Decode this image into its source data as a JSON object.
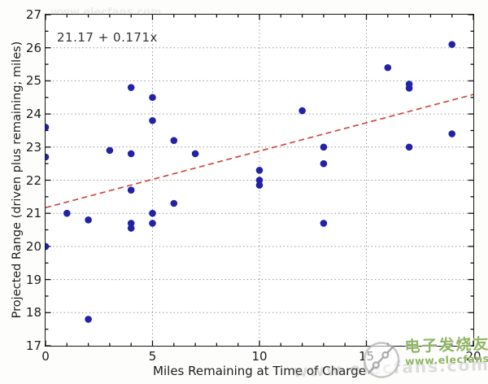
{
  "chart_data": {
    "type": "scatter",
    "title": "",
    "xlabel": "Miles Remaining at Time of Charge",
    "ylabel": "Projected Range (driven plus remaining; miles)",
    "annotation": "21.17 + 0.171x",
    "xlim": [
      0,
      20
    ],
    "ylim": [
      17,
      27
    ],
    "x_major_ticks": [
      0,
      5,
      10,
      15,
      20
    ],
    "x_minor_step": 1,
    "y_major_ticks": [
      17,
      18,
      19,
      20,
      21,
      22,
      23,
      24,
      25,
      26,
      27
    ],
    "y_minor_step": 0.5,
    "grid": true,
    "legend_position": "none",
    "points": [
      [
        0,
        23.6
      ],
      [
        0,
        22.7
      ],
      [
        0,
        20.0
      ],
      [
        1,
        21.0
      ],
      [
        2,
        20.8
      ],
      [
        2,
        17.8
      ],
      [
        3,
        22.9
      ],
      [
        4,
        24.8
      ],
      [
        4,
        22.8
      ],
      [
        4,
        21.7
      ],
      [
        4,
        20.7
      ],
      [
        4,
        20.55
      ],
      [
        5,
        24.5
      ],
      [
        5,
        23.8
      ],
      [
        5,
        21.0
      ],
      [
        5,
        20.7
      ],
      [
        6,
        23.2
      ],
      [
        6,
        21.3
      ],
      [
        7,
        22.8
      ],
      [
        10,
        22.3
      ],
      [
        10,
        22.0
      ],
      [
        10,
        21.85
      ],
      [
        12,
        24.1
      ],
      [
        13,
        23.0
      ],
      [
        13,
        22.5
      ],
      [
        13,
        20.7
      ],
      [
        16,
        25.4
      ],
      [
        17,
        24.9
      ],
      [
        17,
        24.78
      ],
      [
        17,
        23.0
      ],
      [
        19,
        26.1
      ],
      [
        19,
        23.4
      ]
    ],
    "trendline": {
      "intercept": 21.17,
      "slope": 0.171,
      "line_style": "dashed"
    },
    "colors": {
      "point": "#2222a8",
      "trend": "#cc4a44",
      "grid": "#999999",
      "axis": "#111111",
      "text": "#222222"
    }
  },
  "watermark": {
    "brand_cn": "电子发烧友",
    "brand_url": "www.elecfans.com",
    "ghost_text": "www.elecfans.com",
    "color": "#8fb563"
  }
}
